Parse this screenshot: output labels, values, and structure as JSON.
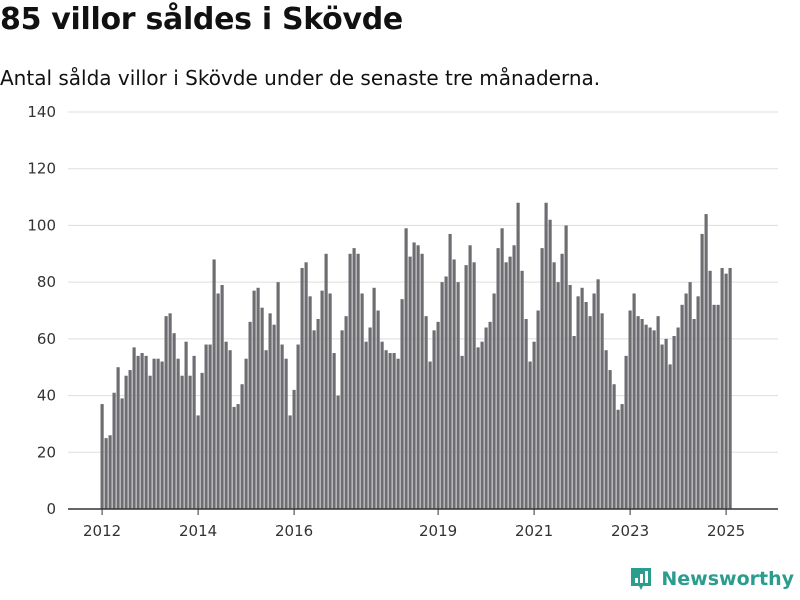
{
  "title": "85 villor såldes i Skövde",
  "subtitle": "Antal sålda villor i Skövde under de senaste tre månaderna.",
  "brand": "Newsworthy",
  "colors": {
    "bar": "#6e6d72",
    "highlight": "#2a9d8f",
    "grid": "#dddddd",
    "axis": "#333333"
  },
  "chart_data": {
    "type": "bar",
    "title": "85 villor såldes i Skövde",
    "subtitle": "Antal sålda villor i Skövde under de senaste tre månaderna.",
    "xlabel": "",
    "ylabel": "",
    "ylim": [
      0,
      140
    ],
    "yticks": [
      0,
      20,
      40,
      60,
      80,
      100,
      120,
      140
    ],
    "xticks": [
      {
        "label": "2012",
        "index": 0
      },
      {
        "label": "2014",
        "index": 24
      },
      {
        "label": "2016",
        "index": 48
      },
      {
        "label": "2019",
        "index": 84
      },
      {
        "label": "2021",
        "index": 108
      },
      {
        "label": "2023",
        "index": 132
      },
      {
        "label": "2025",
        "index": 156
      }
    ],
    "grid": true,
    "period": "monthly, Jan 2012 – Mar 2025",
    "highlight_index": 158,
    "highlight_label": "85",
    "values": [
      37,
      25,
      26,
      41,
      50,
      39,
      47,
      49,
      57,
      54,
      55,
      54,
      47,
      53,
      53,
      52,
      68,
      69,
      62,
      53,
      47,
      59,
      47,
      54,
      33,
      48,
      58,
      58,
      88,
      76,
      79,
      59,
      56,
      36,
      37,
      44,
      53,
      66,
      77,
      78,
      71,
      56,
      69,
      65,
      80,
      58,
      53,
      33,
      42,
      58,
      85,
      87,
      75,
      63,
      67,
      77,
      90,
      76,
      55,
      40,
      63,
      68,
      90,
      92,
      90,
      76,
      59,
      64,
      78,
      70,
      59,
      56,
      55,
      55,
      53,
      74,
      99,
      89,
      94,
      93,
      90,
      68,
      52,
      63,
      66,
      80,
      82,
      97,
      88,
      80,
      54,
      86,
      93,
      87,
      57,
      59,
      64,
      66,
      76,
      92,
      99,
      87,
      89,
      93,
      108,
      84,
      67,
      52,
      59,
      70,
      92,
      108,
      102,
      87,
      80,
      90,
      100,
      79,
      61,
      75,
      78,
      73,
      68,
      76,
      81,
      69,
      56,
      49,
      44,
      35,
      37,
      54,
      70,
      76,
      68,
      67,
      65,
      64,
      63,
      68,
      58,
      60,
      51,
      61,
      64,
      72,
      76,
      80,
      67,
      75,
      97,
      104,
      84,
      72,
      72,
      85,
      83,
      85
    ]
  }
}
